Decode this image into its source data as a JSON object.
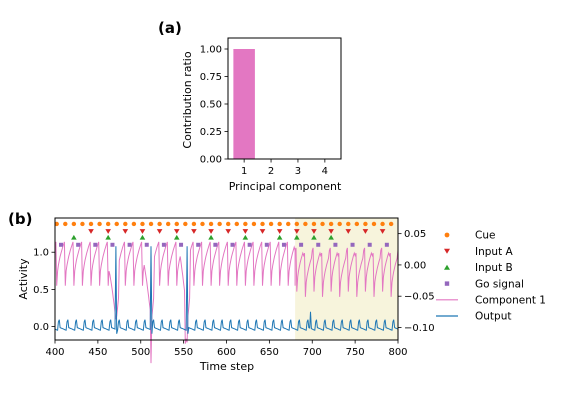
{
  "chart_data": [
    {
      "type": "bar",
      "panel_label": "(a)",
      "categories": [
        "1",
        "2",
        "3",
        "4"
      ],
      "values": [
        1.0,
        0.0,
        0.0,
        0.0
      ],
      "xlabel": "Principal component",
      "ylabel": "Contribution ratio",
      "ylim": [
        0,
        1.1
      ],
      "yticks": [
        "0.00",
        "0.25",
        "0.50",
        "0.75",
        "1.00"
      ],
      "yticks_values": [
        0,
        0.25,
        0.5,
        0.75,
        1.0
      ],
      "bar_color": "#e377c2",
      "grid": false
    },
    {
      "type": "line",
      "panel_label": "(b)",
      "xlabel": "Time step",
      "ylabel": "Activity",
      "xlim": [
        400,
        800
      ],
      "xticks": [
        "400",
        "450",
        "500",
        "550",
        "600",
        "650",
        "700",
        "750",
        "800"
      ],
      "xticks_values": [
        400,
        450,
        500,
        550,
        600,
        650,
        700,
        750,
        800
      ],
      "ylim": [
        -0.18,
        1.46
      ],
      "yticks": [
        "0.0",
        "0.5",
        "1.0"
      ],
      "yticks_values": [
        0,
        0.5,
        1.0
      ],
      "y2lim": [
        -0.12,
        0.075
      ],
      "y2ticks": [
        "0.05",
        "0.00",
        "−0.05",
        "−0.10"
      ],
      "y2ticks_values": [
        0.05,
        0.0,
        -0.05,
        -0.1
      ],
      "shaded_region": [
        680,
        800
      ],
      "shade_color": "#f7f4dc",
      "cue_x": [
        402,
        412,
        422,
        432,
        442,
        452,
        462,
        472,
        482,
        492,
        502,
        512,
        522,
        532,
        542,
        552,
        562,
        572,
        582,
        592,
        602,
        612,
        622,
        632,
        642,
        652,
        662,
        672,
        682,
        692,
        702,
        712,
        722,
        732,
        742,
        752,
        762,
        772,
        782,
        792
      ],
      "cue_y": 1.38,
      "input_a_x": [
        442,
        462,
        482,
        502,
        522,
        542,
        562,
        582,
        602,
        622,
        642,
        662,
        682,
        702,
        722,
        742,
        762,
        782
      ],
      "input_a_y": 1.28,
      "input_b_x": [
        422,
        462,
        502,
        542,
        582,
        622,
        662,
        682,
        702,
        722
      ],
      "input_b_y": 1.2,
      "go_x": [
        407,
        427,
        447,
        467,
        487,
        507,
        527,
        547,
        567,
        587,
        607,
        627,
        647,
        667,
        687,
        707,
        727,
        747,
        767,
        787
      ],
      "go_y": 1.1,
      "legend": [
        {
          "label": "Cue",
          "kind": "marker-circle",
          "color": "#ff7f0e"
        },
        {
          "label": "Input A",
          "kind": "marker-down",
          "color": "#d62728"
        },
        {
          "label": "Input B",
          "kind": "marker-up",
          "color": "#2ca02c"
        },
        {
          "label": "Go signal",
          "kind": "marker-square",
          "color": "#9467bd"
        },
        {
          "label": "Component 1",
          "kind": "line",
          "color": "#e377c2"
        },
        {
          "label": "Output",
          "kind": "line",
          "color": "#1f77b4"
        }
      ],
      "colors": {
        "cue": "#ff7f0e",
        "input_a": "#d62728",
        "input_b": "#2ca02c",
        "go": "#9467bd",
        "component": "#e377c2",
        "output": "#1f77b4"
      }
    }
  ]
}
